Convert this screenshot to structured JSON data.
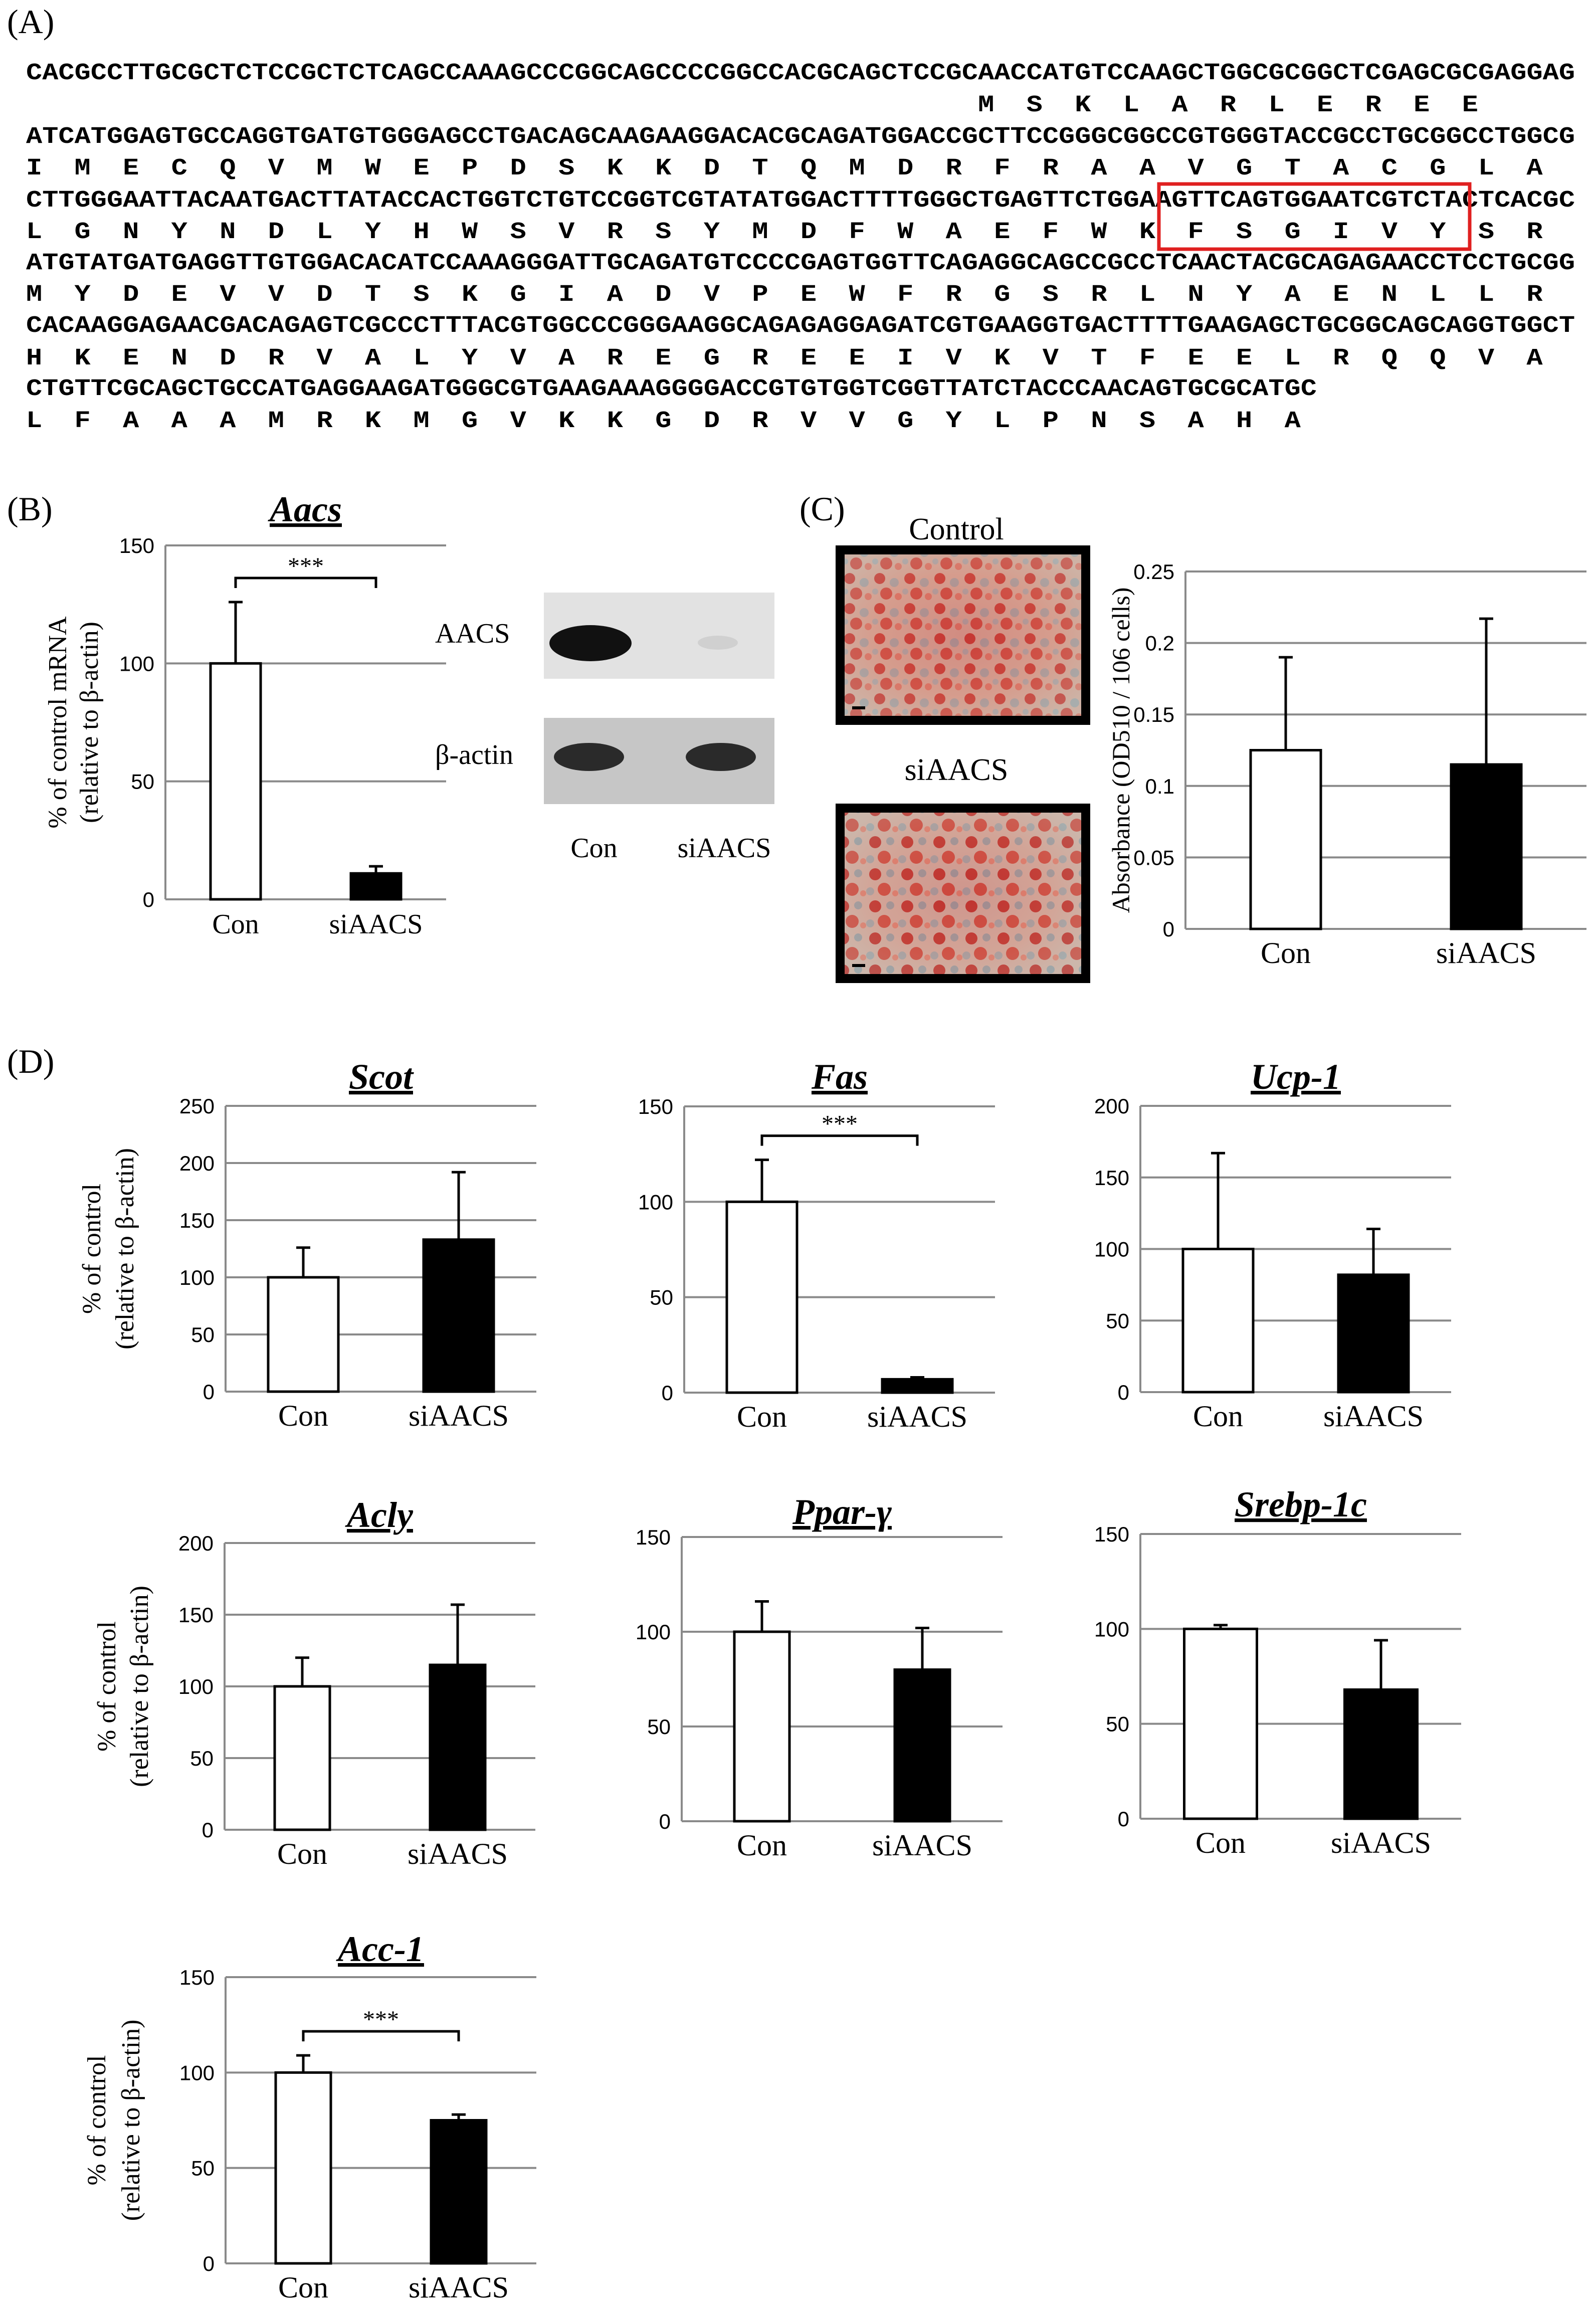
{
  "panel_labels": {
    "a": "(A)",
    "b": "(B)",
    "c": "(C)",
    "d": "(D)"
  },
  "sequence": {
    "rows": [
      {
        "dna": "CACGCCTTGCGCTCTCCGCTCTCAGCCAAAGCCCGGCAGCCCCGGCCACGCAGCTCCGCAACCATGTCCAAGCTGGCGCGGCTCGAGCGCGAGGAG",
        "aa": "                                                           M  S  K  L  A  R  L  E  R  E  E"
      },
      {
        "dna": "ATCATGGAGTGCCAGGTGATGTGGGAGCCTGACAGCAAGAAGGACACGCAGATGGACCGCTTCCGGGCGGCCGTGGGTACCGCCTGCGGCCTGGCG",
        "aa": "I  M  E  C  Q  V  M  W  E  P  D  S  K  K  D  T  Q  M  D  R  F  R  A  A  V  G  T  A  C  G  L  A"
      },
      {
        "dna": "CTTGGGAATTACAATGACTTATACCACTGGTCTGTCCGGTCGTATATGGACTTTTGGGCTGAGTTCTGGAAGTTCAGTGGAATCGTCTACTCACGC",
        "aa": "L  G  N  Y  N  D  L  Y  H  W  S  V  R  S  Y  M  D  F  W  A  E  F  W  K  F  S  G  I  V  Y  S  R"
      },
      {
        "dna": "ATGTATGATGAGGTTGTGGACACATCCAAAGGGATTGCAGATGTCCCCGAGTGGTTCAGAGGCAGCCGCCTCAACTACGCAGAGAACCTCCTGCGG",
        "aa": "M  Y  D  E  V  V  D  T  S  K  G  I  A  D  V  P  E  W  F  R  G  S  R  L  N  Y  A  E  N  L  L  R"
      },
      {
        "dna": "CACAAGGAGAACGACAGAGTCGCCCTTTACGTGGCCCGGGAAGGCAGAGAGGAGATCGTGAAGGTGACTTTTGAAGAGCTGCGGCAGCAGGTGGCT",
        "aa": "H  K  E  N  D  R  V  A  L  Y  V  A  R  E  G  R  E  E  I  V  K  V  T  F  E  E  L  R  Q  Q  V  A"
      },
      {
        "dna": "CTGTTCGCAGCTGCCATGAGGAAGATGGGCGTGAAGAAAGGGGACCGTGTGGTCGGTTATCTACCCAACAGTGCGCATGC",
        "aa": "L  F  A  A  A  M  R  K  M  G  V  K  K  G  D  R  V  V  G  Y  L  P  N  S  A  H  A"
      }
    ],
    "highlight_color": "#e02020"
  },
  "panel_b": {
    "western": {
      "bands": [
        "AACS",
        "β-actin"
      ],
      "lanes": [
        "Con",
        "siAACS"
      ]
    }
  },
  "panel_c": {
    "images": {
      "top_label": "Control",
      "bottom_label": "siAACS"
    }
  },
  "chart_data": [
    {
      "id": "aacs",
      "type": "bar",
      "title": "Aacs",
      "categories": [
        "Con",
        "siAACS"
      ],
      "values": [
        100,
        11
      ],
      "errors": [
        26,
        3
      ],
      "ylim": [
        0,
        150
      ],
      "ticks": [
        0,
        50,
        100,
        150
      ],
      "ylabel": "% of control mRNA",
      "ylabel2": "(relative to β-actin)",
      "significance": "***"
    },
    {
      "id": "absorb",
      "type": "bar",
      "title": "",
      "categories": [
        "Con",
        "siAACS"
      ],
      "values": [
        0.125,
        0.115
      ],
      "errors": [
        0.065,
        0.102
      ],
      "ylim": [
        0,
        0.25
      ],
      "ticks": [
        "0",
        "0.05",
        "0.1",
        "0.15",
        "0.2",
        "0.25"
      ],
      "ylabel": "Absorbance (OD510 / 106 cells)",
      "ylabel2": ""
    },
    {
      "id": "scot",
      "type": "bar",
      "title": "Scot",
      "categories": [
        "Con",
        "siAACS"
      ],
      "values": [
        100,
        133
      ],
      "errors": [
        26,
        59
      ],
      "ylim": [
        0,
        250
      ],
      "ticks": [
        0,
        50,
        100,
        150,
        200,
        250
      ],
      "ylabel": "% of control",
      "ylabel2": "(relative to β-actin)"
    },
    {
      "id": "fas",
      "type": "bar",
      "title": "Fas",
      "categories": [
        "Con",
        "siAACS"
      ],
      "values": [
        100,
        7
      ],
      "errors": [
        22,
        1
      ],
      "ylim": [
        0,
        150
      ],
      "ticks": [
        0,
        50,
        100,
        150
      ],
      "ylabel": "",
      "ylabel2": "",
      "significance": "***"
    },
    {
      "id": "ucp1",
      "type": "bar",
      "title": "Ucp-1",
      "categories": [
        "Con",
        "siAACS"
      ],
      "values": [
        100,
        82
      ],
      "errors": [
        67,
        32
      ],
      "ylim": [
        0,
        200
      ],
      "ticks": [
        0,
        50,
        100,
        150,
        200
      ],
      "ylabel": "",
      "ylabel2": ""
    },
    {
      "id": "acly",
      "type": "bar",
      "title": "Acly",
      "categories": [
        "Con",
        "siAACS"
      ],
      "values": [
        100,
        115
      ],
      "errors": [
        20,
        42
      ],
      "ylim": [
        0,
        200
      ],
      "ticks": [
        0,
        50,
        100,
        150,
        200
      ],
      "ylabel": "% of control",
      "ylabel2": "(relative to β-actin)"
    },
    {
      "id": "ppar",
      "type": "bar",
      "title": "Ppar-γ",
      "categories": [
        "Con",
        "siAACS"
      ],
      "values": [
        100,
        80
      ],
      "errors": [
        16,
        22
      ],
      "ylim": [
        0,
        150
      ],
      "ticks": [
        0,
        50,
        100,
        150
      ],
      "ylabel": "",
      "ylabel2": ""
    },
    {
      "id": "srebp",
      "type": "bar",
      "title": "Srebp-1c",
      "categories": [
        "Con",
        "siAACS"
      ],
      "values": [
        100,
        68
      ],
      "errors": [
        2,
        26
      ],
      "ylim": [
        0,
        150
      ],
      "ticks": [
        0,
        50,
        100,
        150
      ],
      "ylabel": "",
      "ylabel2": ""
    },
    {
      "id": "acc1",
      "type": "bar",
      "title": "Acc-1",
      "categories": [
        "Con",
        "siAACS"
      ],
      "values": [
        100,
        75
      ],
      "errors": [
        9,
        3
      ],
      "ylim": [
        0,
        150
      ],
      "ticks": [
        0,
        50,
        100,
        150
      ],
      "ylabel": "% of control",
      "ylabel2": "(relative to β-actin)",
      "significance": "***"
    }
  ]
}
